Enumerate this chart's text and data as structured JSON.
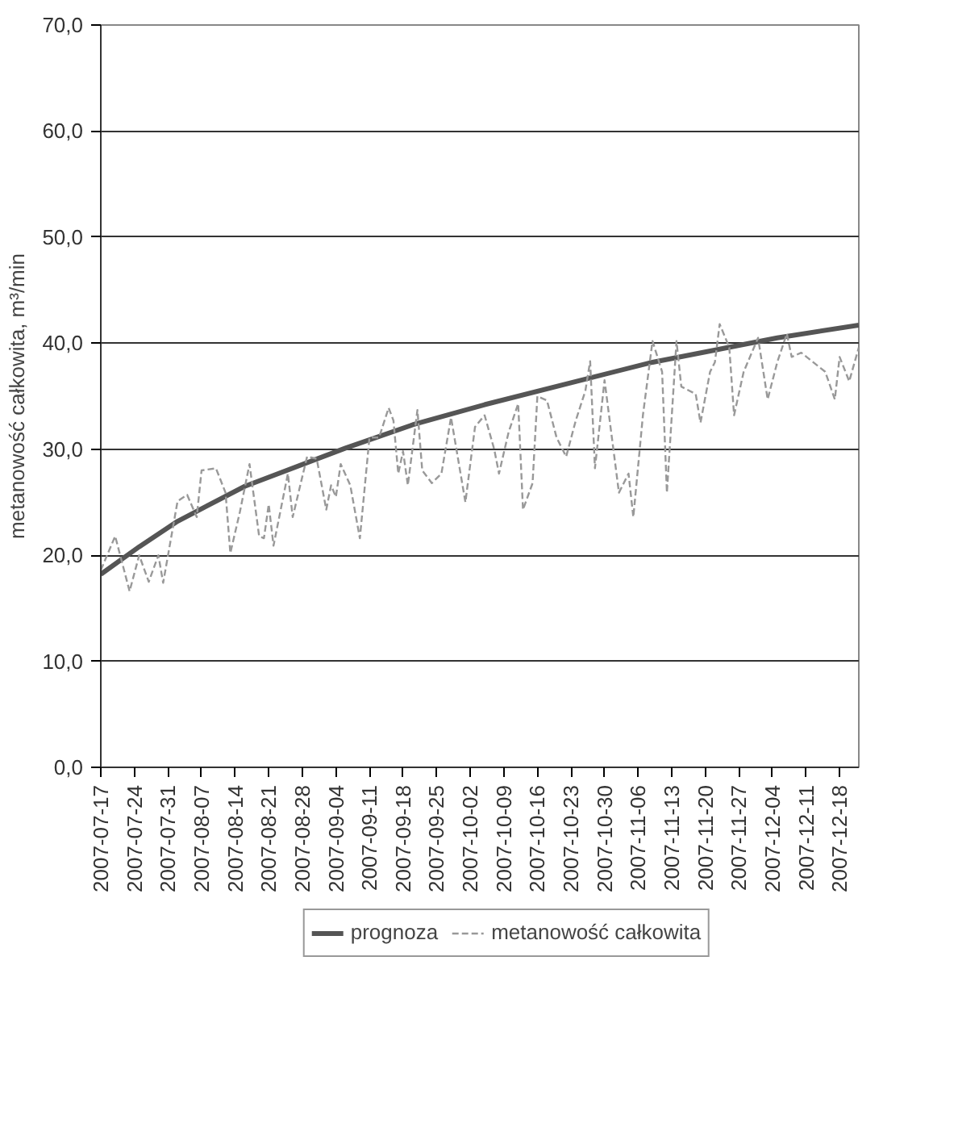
{
  "chart_data": {
    "type": "line",
    "ylabel": "metanowość całkowita, m³/min",
    "xlim": [
      "2007-07-17",
      "2007-12-22"
    ],
    "xticks": [
      "2007-07-17",
      "2007-07-24",
      "2007-07-31",
      "2007-08-07",
      "2007-08-14",
      "2007-08-21",
      "2007-08-28",
      "2007-09-04",
      "2007-09-11",
      "2007-09-18",
      "2007-09-25",
      "2007-10-02",
      "2007-10-09",
      "2007-10-16",
      "2007-10-23",
      "2007-10-30",
      "2007-11-06",
      "2007-11-13",
      "2007-11-20",
      "2007-11-27",
      "2007-12-04",
      "2007-12-11",
      "2007-12-18"
    ],
    "ylim": [
      0,
      70
    ],
    "yticks": [
      {
        "value": 0,
        "label": "0,0"
      },
      {
        "value": 10,
        "label": "10,0"
      },
      {
        "value": 20,
        "label": "20,0"
      },
      {
        "value": 30,
        "label": "30,0"
      },
      {
        "value": 40,
        "label": "40,0"
      },
      {
        "value": 50,
        "label": "50,0"
      },
      {
        "value": 60,
        "label": "60,0"
      },
      {
        "value": 70,
        "label": "70,0"
      }
    ],
    "grid": "y",
    "legend": "bottom",
    "marker": "none",
    "series": [
      {
        "name": "prognoza",
        "color": "#555555",
        "line_style": "solid",
        "x": [
          "2007-07-17",
          "2007-07-25",
          "2007-08-02",
          "2007-08-16",
          "2007-09-06",
          "2007-09-20",
          "2007-10-05",
          "2007-10-25",
          "2007-11-09",
          "2007-12-05",
          "2007-12-22"
        ],
        "values": [
          18.2,
          20.8,
          23.2,
          26.5,
          30.1,
          32.3,
          34.2,
          36.5,
          38.2,
          40.5,
          41.7
        ]
      },
      {
        "name": "metanowość całkowita",
        "color": "#999999",
        "line_style": "dashed",
        "x": [
          "2007-07-17",
          "2007-07-20",
          "2007-07-23",
          "2007-07-25",
          "2007-07-27",
          "2007-07-29",
          "2007-07-30",
          "2007-08-02",
          "2007-08-04",
          "2007-08-06",
          "2007-08-07",
          "2007-08-10",
          "2007-08-12",
          "2007-08-13",
          "2007-08-15",
          "2007-08-17",
          "2007-08-19",
          "2007-08-20",
          "2007-08-21",
          "2007-08-22",
          "2007-08-25",
          "2007-08-26",
          "2007-08-29",
          "2007-08-31",
          "2007-09-02",
          "2007-09-03",
          "2007-09-04",
          "2007-09-05",
          "2007-09-07",
          "2007-09-09",
          "2007-09-11",
          "2007-09-13",
          "2007-09-15",
          "2007-09-16",
          "2007-09-17",
          "2007-09-18",
          "2007-09-19",
          "2007-09-21",
          "2007-09-22",
          "2007-09-24",
          "2007-09-26",
          "2007-09-28",
          "2007-10-01",
          "2007-10-03",
          "2007-10-05",
          "2007-10-07",
          "2007-10-08",
          "2007-10-10",
          "2007-10-12",
          "2007-10-13",
          "2007-10-15",
          "2007-10-16",
          "2007-10-18",
          "2007-10-20",
          "2007-10-22",
          "2007-10-24",
          "2007-10-26",
          "2007-10-27",
          "2007-10-28",
          "2007-10-30",
          "2007-11-02",
          "2007-11-04",
          "2007-11-05",
          "2007-11-07",
          "2007-11-09",
          "2007-11-11",
          "2007-11-12",
          "2007-11-14",
          "2007-11-15",
          "2007-11-18",
          "2007-11-19",
          "2007-11-21",
          "2007-11-22",
          "2007-11-23",
          "2007-11-25",
          "2007-11-26",
          "2007-11-28",
          "2007-12-01",
          "2007-12-03",
          "2007-12-05",
          "2007-12-07",
          "2007-12-08",
          "2007-12-10",
          "2007-12-15",
          "2007-12-17",
          "2007-12-18",
          "2007-12-20",
          "2007-12-22"
        ],
        "values": [
          18.6,
          21.8,
          16.6,
          20.0,
          17.5,
          20.0,
          17.4,
          25.1,
          25.7,
          23.6,
          28.0,
          28.2,
          25.9,
          20.2,
          24.1,
          28.6,
          21.8,
          21.6,
          24.8,
          20.9,
          27.7,
          23.6,
          29.3,
          29.1,
          24.3,
          26.6,
          25.5,
          28.6,
          26.6,
          21.6,
          31.1,
          31.1,
          33.9,
          32.7,
          27.7,
          29.8,
          26.6,
          33.7,
          28.0,
          26.8,
          27.7,
          33.0,
          25.0,
          32.1,
          33.2,
          30.0,
          27.7,
          31.6,
          34.3,
          24.3,
          26.8,
          35.0,
          34.6,
          31.1,
          29.3,
          32.7,
          35.5,
          38.3,
          28.2,
          36.5,
          25.9,
          27.7,
          23.6,
          33.2,
          40.2,
          37.3,
          25.9,
          40.2,
          35.9,
          35.2,
          32.5,
          37.3,
          38.2,
          41.8,
          39.6,
          33.2,
          37.3,
          40.5,
          34.7,
          38.2,
          40.9,
          38.7,
          39.1,
          37.3,
          34.7,
          38.7,
          36.4,
          39.6
        ]
      }
    ]
  }
}
